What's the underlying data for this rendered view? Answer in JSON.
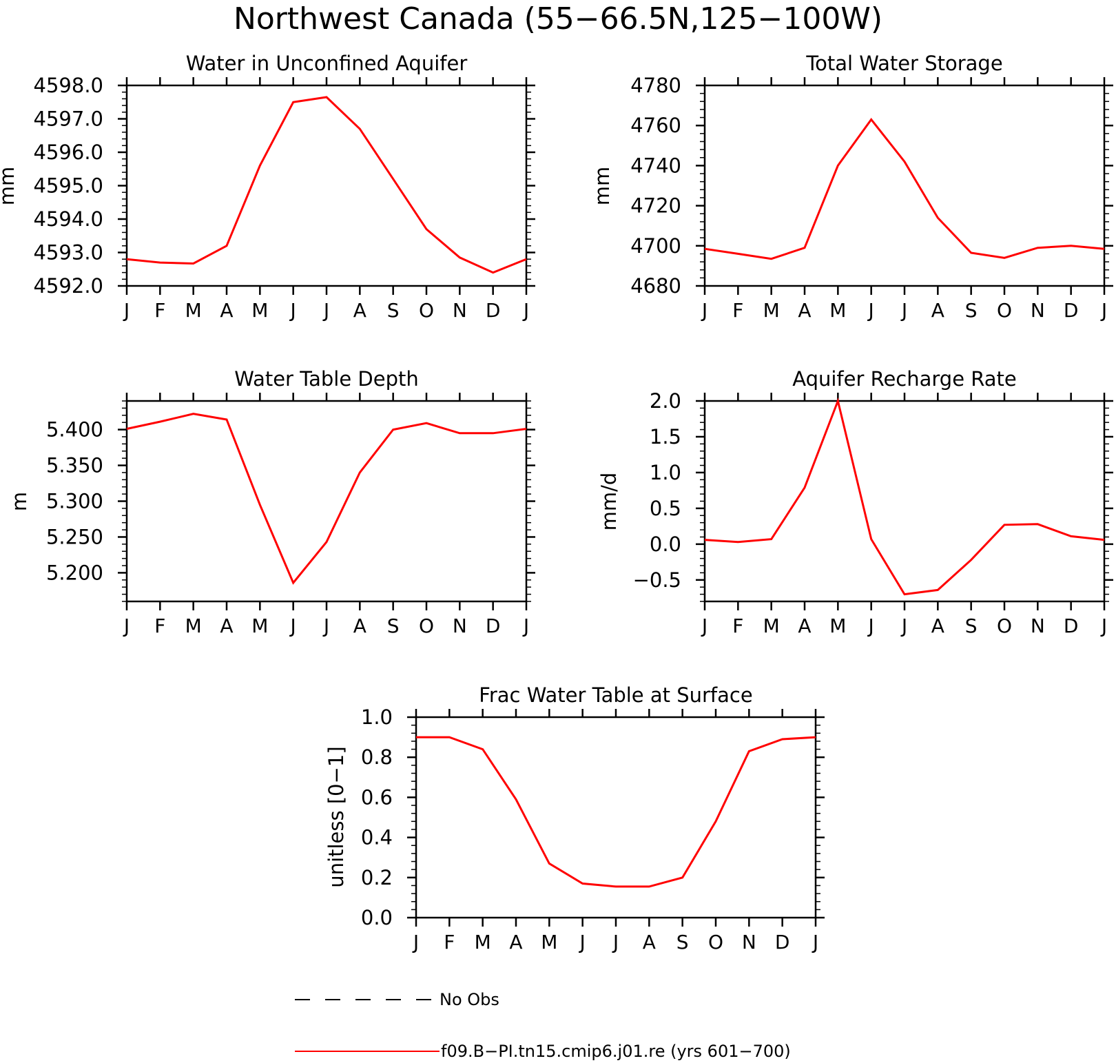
{
  "figure": {
    "title": "Northwest Canada (55−66.5N,125−100W)"
  },
  "chart_data": [
    {
      "type": "line",
      "title": "Water in Unconfined Aquifer",
      "ylabel": "mm",
      "xlabel": "",
      "categories": [
        "J",
        "F",
        "M",
        "A",
        "M",
        "J",
        "J",
        "A",
        "S",
        "O",
        "N",
        "D",
        "J"
      ],
      "ylim": [
        4592.0,
        4598.0
      ],
      "yticks": [
        4592.0,
        4593.0,
        4594.0,
        4595.0,
        4596.0,
        4597.0,
        4598.0
      ],
      "ytick_labels": [
        "4592.0",
        "4593.0",
        "4594.0",
        "4595.0",
        "4596.0",
        "4597.0",
        "4598.0"
      ],
      "y_minor_step": 0.2,
      "series": [
        {
          "values": [
            4592.8,
            4592.7,
            4592.67,
            4593.2,
            4595.6,
            4597.5,
            4597.65,
            4596.7,
            4595.2,
            4593.7,
            4592.85,
            4592.4,
            4592.8
          ]
        }
      ]
    },
    {
      "type": "line",
      "title": "Total Water Storage",
      "ylabel": "mm",
      "xlabel": "",
      "categories": [
        "J",
        "F",
        "M",
        "A",
        "M",
        "J",
        "J",
        "A",
        "S",
        "O",
        "N",
        "D",
        "J"
      ],
      "ylim": [
        4680,
        4780
      ],
      "yticks": [
        4680,
        4700,
        4720,
        4740,
        4760,
        4780
      ],
      "ytick_labels": [
        "4680",
        "4700",
        "4720",
        "4740",
        "4760",
        "4780"
      ],
      "y_minor_step": 4,
      "series": [
        {
          "values": [
            4698.5,
            4696,
            4693.5,
            4699,
            4740,
            4763,
            4742,
            4714,
            4696.5,
            4694,
            4699,
            4700,
            4698.5
          ]
        }
      ]
    },
    {
      "type": "line",
      "title": "Water Table Depth",
      "ylabel": "m",
      "xlabel": "",
      "categories": [
        "J",
        "F",
        "M",
        "A",
        "M",
        "J",
        "J",
        "A",
        "S",
        "O",
        "N",
        "D",
        "J"
      ],
      "ylim": [
        5.16,
        5.44
      ],
      "yticks": [
        5.2,
        5.25,
        5.3,
        5.35,
        5.4
      ],
      "ytick_labels": [
        "5.200",
        "5.250",
        "5.300",
        "5.350",
        "5.400"
      ],
      "y_minor_step": 0.01,
      "series": [
        {
          "values": [
            5.401,
            5.411,
            5.422,
            5.414,
            5.295,
            5.186,
            5.243,
            5.34,
            5.4,
            5.409,
            5.395,
            5.395,
            5.401
          ]
        }
      ]
    },
    {
      "type": "line",
      "title": "Aquifer Recharge Rate",
      "ylabel": "mm/d",
      "xlabel": "",
      "categories": [
        "J",
        "F",
        "M",
        "A",
        "M",
        "J",
        "J",
        "A",
        "S",
        "O",
        "N",
        "D",
        "J"
      ],
      "ylim": [
        -0.8,
        2.0
      ],
      "yticks": [
        -0.5,
        0.0,
        0.5,
        1.0,
        1.5,
        2.0
      ],
      "ytick_labels": [
        "−0.5",
        "0.0",
        "0.5",
        "1.0",
        "1.5",
        "2.0"
      ],
      "y_minor_step": 0.1,
      "series": [
        {
          "values": [
            0.06,
            0.03,
            0.07,
            0.79,
            2.0,
            0.07,
            -0.7,
            -0.64,
            -0.22,
            0.27,
            0.28,
            0.11,
            0.06
          ]
        }
      ]
    },
    {
      "type": "line",
      "title": "Frac Water Table at Surface",
      "ylabel": "unitless [0−1]",
      "xlabel": "",
      "categories": [
        "J",
        "F",
        "M",
        "A",
        "M",
        "J",
        "J",
        "A",
        "S",
        "O",
        "N",
        "D",
        "J"
      ],
      "ylim": [
        0.0,
        1.0
      ],
      "yticks": [
        0.0,
        0.2,
        0.4,
        0.6,
        0.8,
        1.0
      ],
      "ytick_labels": [
        "0.0",
        "0.2",
        "0.4",
        "0.6",
        "0.8",
        "1.0"
      ],
      "y_minor_step": 0.04,
      "series": [
        {
          "values": [
            0.9,
            0.9,
            0.84,
            0.59,
            0.27,
            0.17,
            0.155,
            0.155,
            0.2,
            0.48,
            0.83,
            0.89,
            0.9
          ]
        }
      ]
    }
  ],
  "legend": {
    "items": [
      {
        "label": "No Obs",
        "style": "dashed",
        "color": "#000000"
      },
      {
        "label": "f09.B−PI.tn15.cmip6.j01.re (yrs 601−700)",
        "style": "solid",
        "color": "#ff0000"
      }
    ]
  },
  "colors": {
    "series": "#ff0000",
    "axes": "#000000",
    "background": "#ffffff"
  }
}
